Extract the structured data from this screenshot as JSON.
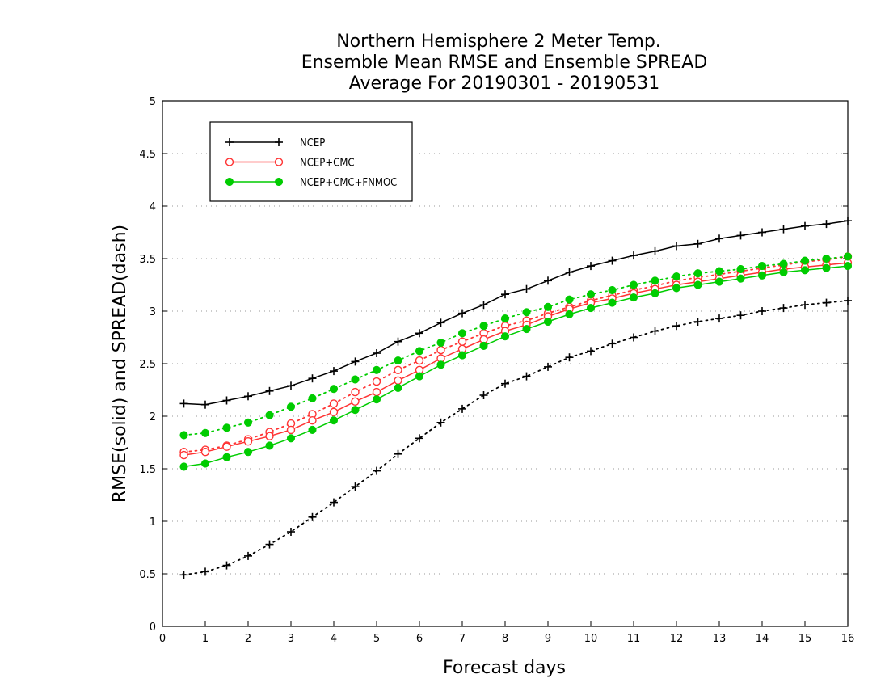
{
  "chart_data": {
    "type": "line",
    "title": [
      "Northern Hemisphere 2 Meter Temp.",
      "Ensemble Mean RMSE and Ensemble SPREAD",
      "Average For 20190301 - 20190531"
    ],
    "xlabel": "Forecast days",
    "ylabel": "RMSE(solid) and SPREAD(dash)",
    "xlim": [
      0,
      16
    ],
    "ylim": [
      0,
      5
    ],
    "x_ticks": [
      0,
      1,
      2,
      3,
      4,
      5,
      6,
      7,
      8,
      9,
      10,
      11,
      12,
      13,
      14,
      15,
      16
    ],
    "y_ticks": [
      0,
      0.5,
      1,
      1.5,
      2,
      2.5,
      3,
      3.5,
      4,
      4.5,
      5
    ],
    "y_tick_labels": [
      "0",
      "0.5",
      "1",
      "1.5",
      "2",
      "2.5",
      "3",
      "3.5",
      "4",
      "4.5",
      "5"
    ],
    "grid": "horizontal dotted",
    "legend_position": "top-left",
    "x": [
      0.5,
      1.0,
      1.5,
      2.0,
      2.5,
      3.0,
      3.5,
      4.0,
      4.5,
      5.0,
      5.5,
      6.0,
      6.5,
      7.0,
      7.5,
      8.0,
      8.5,
      9.0,
      9.5,
      10.0,
      10.5,
      11.0,
      11.5,
      12.0,
      12.5,
      13.0,
      13.5,
      14.0,
      14.5,
      15.0,
      15.5,
      16.0
    ],
    "series": [
      {
        "name": "NCEP",
        "color": "#000000",
        "marker": "plus",
        "rmse": [
          2.12,
          2.11,
          2.15,
          2.19,
          2.24,
          2.29,
          2.36,
          2.43,
          2.52,
          2.6,
          2.71,
          2.79,
          2.89,
          2.98,
          3.06,
          3.16,
          3.21,
          3.29,
          3.37,
          3.43,
          3.48,
          3.53,
          3.57,
          3.62,
          3.64,
          3.69,
          3.72,
          3.75,
          3.78,
          3.81,
          3.83,
          3.86
        ],
        "spread": [
          0.49,
          0.52,
          0.58,
          0.67,
          0.78,
          0.9,
          1.04,
          1.18,
          1.33,
          1.48,
          1.64,
          1.79,
          1.94,
          2.07,
          2.2,
          2.31,
          2.38,
          2.47,
          2.56,
          2.62,
          2.69,
          2.75,
          2.81,
          2.86,
          2.9,
          2.93,
          2.96,
          3.0,
          3.03,
          3.06,
          3.08,
          3.1
        ]
      },
      {
        "name": "NCEP+CMC",
        "color": "#ff3333",
        "marker": "open-circle",
        "rmse": [
          1.63,
          1.66,
          1.71,
          1.76,
          1.81,
          1.87,
          1.96,
          2.04,
          2.14,
          2.23,
          2.34,
          2.44,
          2.55,
          2.64,
          2.73,
          2.81,
          2.87,
          2.95,
          3.02,
          3.08,
          3.12,
          3.17,
          3.21,
          3.25,
          3.28,
          3.31,
          3.34,
          3.37,
          3.4,
          3.42,
          3.44,
          3.46
        ],
        "spread": [
          1.66,
          1.68,
          1.72,
          1.78,
          1.85,
          1.93,
          2.02,
          2.12,
          2.23,
          2.33,
          2.44,
          2.53,
          2.63,
          2.71,
          2.79,
          2.86,
          2.91,
          2.98,
          3.04,
          3.1,
          3.15,
          3.2,
          3.24,
          3.29,
          3.32,
          3.35,
          3.38,
          3.41,
          3.44,
          3.47,
          3.49,
          3.52
        ]
      },
      {
        "name": "NCEP+CMC+FNMOC",
        "color": "#00cc00",
        "marker": "filled-circle",
        "rmse": [
          1.52,
          1.55,
          1.61,
          1.66,
          1.72,
          1.79,
          1.87,
          1.96,
          2.06,
          2.16,
          2.27,
          2.38,
          2.49,
          2.58,
          2.67,
          2.76,
          2.83,
          2.9,
          2.97,
          3.03,
          3.08,
          3.13,
          3.17,
          3.22,
          3.25,
          3.28,
          3.31,
          3.34,
          3.37,
          3.39,
          3.41,
          3.43
        ],
        "spread": [
          1.82,
          1.84,
          1.89,
          1.94,
          2.01,
          2.09,
          2.17,
          2.26,
          2.35,
          2.44,
          2.53,
          2.62,
          2.7,
          2.79,
          2.86,
          2.93,
          2.99,
          3.04,
          3.11,
          3.16,
          3.2,
          3.25,
          3.29,
          3.33,
          3.36,
          3.38,
          3.4,
          3.43,
          3.45,
          3.48,
          3.5,
          3.52
        ]
      }
    ]
  }
}
